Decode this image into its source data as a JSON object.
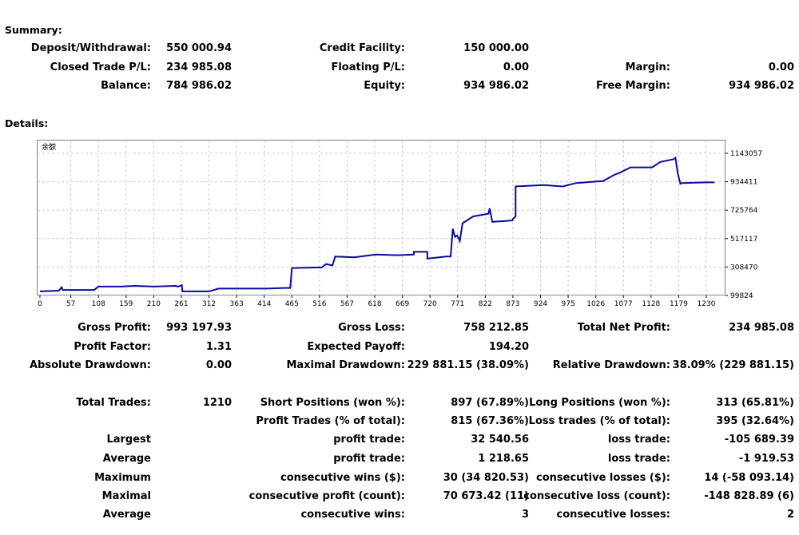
{
  "summary": {
    "heading": "Summary:",
    "rows": [
      [
        {
          "label": "Deposit/Withdrawal:",
          "value": "550 000.94"
        },
        {
          "label": "Credit Facility:",
          "value": "150 000.00"
        },
        {
          "label": "",
          "value": ""
        }
      ],
      [
        {
          "label": "Closed Trade P/L:",
          "value": "234 985.08"
        },
        {
          "label": "Floating P/L:",
          "value": "0.00"
        },
        {
          "label": "Margin:",
          "value": "0.00"
        }
      ],
      [
        {
          "label": "Balance:",
          "value": "784 986.02"
        },
        {
          "label": "Equity:",
          "value": "934 986.02"
        },
        {
          "label": "Free Margin:",
          "value": "934 986.02"
        }
      ]
    ]
  },
  "details_heading": "Details:",
  "chart_data": {
    "type": "line",
    "title": "余额",
    "x_ticks": [
      "0",
      "57",
      "108",
      "159",
      "210",
      "261",
      "312",
      "363",
      "414",
      "465",
      "516",
      "567",
      "618",
      "669",
      "720",
      "771",
      "822",
      "873",
      "924",
      "975",
      "1026",
      "1077",
      "1128",
      "1179",
      "1230"
    ],
    "y_ticks": [
      "1143057",
      "934411",
      "725764",
      "517117",
      "308470",
      "99824"
    ],
    "xlim": [
      0,
      1230
    ],
    "ylim": [
      99824,
      1143057
    ],
    "grid": true,
    "line_color": "#0a0aa0",
    "series": [
      {
        "values": [
          [
            0,
            130000
          ],
          [
            35,
            135000
          ],
          [
            40,
            160000
          ],
          [
            42,
            140000
          ],
          [
            100,
            140000
          ],
          [
            108,
            165000
          ],
          [
            150,
            165000
          ],
          [
            175,
            170000
          ],
          [
            210,
            165000
          ],
          [
            250,
            170000
          ],
          [
            255,
            165000
          ],
          [
            262,
            175000
          ],
          [
            263,
            130000
          ],
          [
            270,
            130000
          ],
          [
            312,
            130000
          ],
          [
            330,
            150000
          ],
          [
            363,
            150000
          ],
          [
            420,
            150000
          ],
          [
            450,
            155000
          ],
          [
            462,
            155000
          ],
          [
            465,
            300000
          ],
          [
            505,
            305000
          ],
          [
            520,
            305000
          ],
          [
            528,
            330000
          ],
          [
            540,
            320000
          ],
          [
            545,
            385000
          ],
          [
            580,
            380000
          ],
          [
            620,
            400000
          ],
          [
            660,
            395000
          ],
          [
            690,
            400000
          ],
          [
            690,
            420000
          ],
          [
            715,
            420000
          ],
          [
            715,
            370000
          ],
          [
            750,
            385000
          ],
          [
            758,
            385000
          ],
          [
            762,
            590000
          ],
          [
            766,
            530000
          ],
          [
            770,
            540000
          ],
          [
            775,
            500000
          ],
          [
            780,
            630000
          ],
          [
            800,
            680000
          ],
          [
            828,
            700000
          ],
          [
            830,
            740000
          ],
          [
            835,
            640000
          ],
          [
            872,
            650000
          ],
          [
            873,
            660000
          ],
          [
            878,
            680000
          ],
          [
            878,
            900000
          ],
          [
            930,
            910000
          ],
          [
            965,
            900000
          ],
          [
            990,
            925000
          ],
          [
            1040,
            940000
          ],
          [
            1060,
            985000
          ],
          [
            1070,
            1000000
          ],
          [
            1090,
            1040000
          ],
          [
            1130,
            1040000
          ],
          [
            1145,
            1080000
          ],
          [
            1170,
            1100000
          ],
          [
            1173,
            1110000
          ],
          [
            1177,
            1000000
          ],
          [
            1182,
            920000
          ],
          [
            1185,
            925000
          ],
          [
            1230,
            930000
          ],
          [
            1245,
            930000
          ]
        ]
      }
    ]
  },
  "stats": [
    [
      {
        "label": "Gross Profit:",
        "value": "993 197.93"
      },
      {
        "label": "Gross Loss:",
        "value": "758 212.85"
      },
      {
        "label": "Total Net Profit:",
        "value": "234 985.08"
      }
    ],
    [
      {
        "label": "Profit Factor:",
        "value": "1.31"
      },
      {
        "label": "Expected Payoff:",
        "value": "194.20"
      },
      {
        "label": "",
        "value": ""
      }
    ],
    [
      {
        "label": "Absolute Drawdown:",
        "value": "0.00"
      },
      {
        "label": "Maximal Drawdown:",
        "value": "229 881.15 (38.09%)"
      },
      {
        "label": "Relative Drawdown:",
        "value": "38.09% (229 881.15)"
      }
    ]
  ],
  "trades": [
    [
      {
        "label": "Total Trades:",
        "value": "1210"
      },
      {
        "label": "Short Positions (won %):",
        "value": "897 (67.89%)"
      },
      {
        "label": "Long Positions (won %):",
        "value": "313 (65.81%)"
      }
    ],
    [
      {
        "label": "",
        "value": ""
      },
      {
        "label": "Profit Trades (% of total):",
        "value": "815 (67.36%)"
      },
      {
        "label": "Loss trades (% of total):",
        "value": "395 (32.64%)"
      }
    ],
    [
      {
        "label": "Largest",
        "value": ""
      },
      {
        "label": "profit trade:",
        "value": "32 540.56"
      },
      {
        "label": "loss trade:",
        "value": "-105 689.39"
      }
    ],
    [
      {
        "label": "Average",
        "value": ""
      },
      {
        "label": "profit trade:",
        "value": "1 218.65"
      },
      {
        "label": "loss trade:",
        "value": "-1 919.53"
      }
    ],
    [
      {
        "label": "Maximum",
        "value": ""
      },
      {
        "label": "consecutive wins ($):",
        "value": "30 (34 820.53)"
      },
      {
        "label": "consecutive losses ($):",
        "value": "14 (-58 093.14)"
      }
    ],
    [
      {
        "label": "Maximal",
        "value": ""
      },
      {
        "label": "consecutive profit (count):",
        "value": "70 673.42 (11)"
      },
      {
        "label": "consecutive loss (count):",
        "value": "-148 828.89 (6)"
      }
    ],
    [
      {
        "label": "Average",
        "value": ""
      },
      {
        "label": "consecutive wins:",
        "value": "3"
      },
      {
        "label": "consecutive losses:",
        "value": "2"
      }
    ]
  ]
}
